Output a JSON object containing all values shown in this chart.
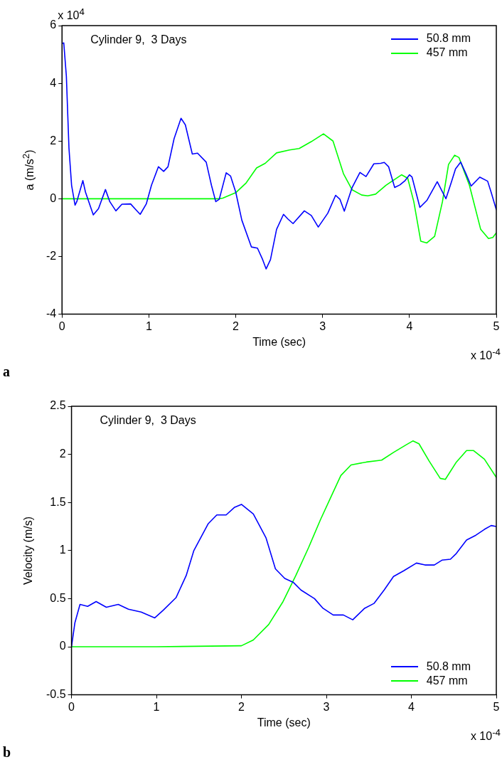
{
  "chart_data": [
    {
      "type": "line",
      "xlabel": "Time (sec)",
      "ylabel": "a (m/s$^{2}$)",
      "annotations": [
        "Cylinder 9,  3 Days",
        "x 10$^{-4}$",
        "a",
        "x 10$^{4}$"
      ],
      "xlim": [
        0,
        5
      ],
      "xticks": [
        0,
        1,
        2,
        3,
        4,
        5
      ],
      "ylim": [
        -4,
        6
      ],
      "yticks": [
        -4,
        -2,
        0,
        2,
        4,
        6
      ],
      "grid": false,
      "legend": "top right",
      "marker": "none",
      "line_style": "solid",
      "series": [
        {
          "name": "50.8 mm",
          "color": "#0000ff",
          "x": [
            0,
            0.02,
            0.05,
            0.08,
            0.11,
            0.15,
            0.17,
            0.24,
            0.27,
            0.36,
            0.42,
            0.5,
            0.55,
            0.62,
            0.69,
            0.79,
            0.85,
            0.9,
            0.97,
            1.03,
            1.11,
            1.17,
            1.22,
            1.29,
            1.37,
            1.42,
            1.5,
            1.56,
            1.66,
            1.72,
            1.77,
            1.81,
            1.89,
            1.94,
            2.0,
            2.07,
            2.18,
            2.25,
            2.31,
            2.35,
            2.4,
            2.47,
            2.55,
            2.6,
            2.66,
            2.79,
            2.87,
            2.95,
            3.06,
            3.15,
            3.2,
            3.25,
            3.34,
            3.43,
            3.5,
            3.59,
            3.67,
            3.71,
            3.76,
            3.83,
            3.89,
            3.95,
            4.0,
            4.03,
            4.12,
            4.2,
            4.32,
            4.42,
            4.48,
            4.53,
            4.59,
            4.65,
            4.71,
            4.81,
            4.9,
            4.94,
            5.0
          ],
          "values": [
            5.38,
            5.4,
            4.25,
            1.75,
            0.47,
            -0.22,
            -0.1,
            0.63,
            0.23,
            -0.56,
            -0.34,
            0.32,
            -0.1,
            -0.42,
            -0.19,
            -0.18,
            -0.38,
            -0.54,
            -0.18,
            0.47,
            1.11,
            0.95,
            1.11,
            2.08,
            2.79,
            2.56,
            1.55,
            1.58,
            1.27,
            0.47,
            -0.1,
            -0.02,
            0.9,
            0.79,
            0.23,
            -0.74,
            -1.67,
            -1.71,
            -2.11,
            -2.43,
            -2.11,
            -1.06,
            -0.54,
            -0.7,
            -0.86,
            -0.42,
            -0.58,
            -0.98,
            -0.5,
            0.12,
            -0.02,
            -0.43,
            0.39,
            0.91,
            0.77,
            1.21,
            1.23,
            1.26,
            1.11,
            0.39,
            0.48,
            0.63,
            0.83,
            0.75,
            -0.3,
            -0.06,
            0.59,
            0,
            0.55,
            1.03,
            1.27,
            0.87,
            0.44,
            0.75,
            0.61,
            0.23,
            -0.38
          ]
        },
        {
          "name": "457 mm",
          "color": "#00ff00",
          "x": [
            0,
            0.5,
            1,
            1.5,
            1.8,
            1.85,
            2.0,
            2.12,
            2.24,
            2.34,
            2.47,
            2.62,
            2.73,
            2.87,
            3.01,
            3.12,
            3.24,
            3.34,
            3.45,
            3.52,
            3.61,
            3.73,
            3.91,
            3.98,
            4.05,
            4.13,
            4.2,
            4.29,
            4.38,
            4.45,
            4.52,
            4.57,
            4.69,
            4.82,
            4.91,
            4.96,
            5.0
          ],
          "values": [
            0,
            0,
            0,
            0,
            0,
            0.02,
            0.21,
            0.55,
            1.07,
            1.23,
            1.59,
            1.69,
            1.74,
            1.98,
            2.25,
            2.0,
            0.87,
            0.31,
            0.13,
            0.1,
            0.16,
            0.47,
            0.83,
            0.71,
            -0.1,
            -1.47,
            -1.53,
            -1.3,
            -0.1,
            1.19,
            1.51,
            1.43,
            0.47,
            -1.06,
            -1.38,
            -1.34,
            -1.18
          ]
        }
      ]
    },
    {
      "type": "line",
      "xlabel": "Time (sec)",
      "ylabel": "Velocity (m/s)",
      "annotations": [
        "Cylinder 9,  3 Days",
        "x 10$^{-4}$",
        "b"
      ],
      "xlim": [
        0,
        5
      ],
      "xticks": [
        0,
        1,
        2,
        3,
        4,
        5
      ],
      "ylim": [
        -0.5,
        2.5
      ],
      "yticks": [
        -0.5,
        0,
        0.5,
        1,
        1.5,
        2,
        2.5
      ],
      "grid": false,
      "legend": "bottom right",
      "marker": "none",
      "line_style": "solid",
      "series": [
        {
          "name": "50.8 mm",
          "color": "#0000ff",
          "x": [
            0,
            0.04,
            0.1,
            0.19,
            0.29,
            0.41,
            0.55,
            0.67,
            0.82,
            0.98,
            1.08,
            1.23,
            1.35,
            1.44,
            1.61,
            1.71,
            1.82,
            1.92,
            2.0,
            2.14,
            2.29,
            2.4,
            2.51,
            2.61,
            2.7,
            2.86,
            2.96,
            3.08,
            3.2,
            3.31,
            3.45,
            3.56,
            3.68,
            3.79,
            3.91,
            4.06,
            4.16,
            4.27,
            4.36,
            4.46,
            4.53,
            4.65,
            4.76,
            4.86,
            4.94,
            5.0
          ],
          "values": [
            0,
            0.25,
            0.44,
            0.42,
            0.47,
            0.41,
            0.44,
            0.39,
            0.36,
            0.3,
            0.38,
            0.51,
            0.74,
            1.0,
            1.28,
            1.37,
            1.37,
            1.45,
            1.48,
            1.38,
            1.13,
            0.81,
            0.71,
            0.67,
            0.59,
            0.5,
            0.4,
            0.33,
            0.33,
            0.28,
            0.4,
            0.45,
            0.59,
            0.73,
            0.79,
            0.87,
            0.85,
            0.85,
            0.9,
            0.91,
            0.97,
            1.11,
            1.16,
            1.22,
            1.26,
            1.25
          ]
        },
        {
          "name": "457 mm",
          "color": "#00ff00",
          "x": [
            0,
            1,
            2.0,
            2.14,
            2.32,
            2.49,
            2.64,
            2.79,
            2.93,
            3.05,
            3.17,
            3.29,
            3.47,
            3.65,
            3.79,
            3.94,
            4.02,
            4.09,
            4.21,
            4.34,
            4.4,
            4.53,
            4.65,
            4.73,
            4.86,
            5.0
          ],
          "values": [
            0,
            0,
            0.01,
            0.07,
            0.23,
            0.47,
            0.74,
            1.03,
            1.32,
            1.55,
            1.78,
            1.89,
            1.92,
            1.94,
            2.02,
            2.1,
            2.14,
            2.11,
            1.93,
            1.75,
            1.74,
            1.92,
            2.04,
            2.04,
            1.95,
            1.76
          ]
        }
      ]
    }
  ]
}
